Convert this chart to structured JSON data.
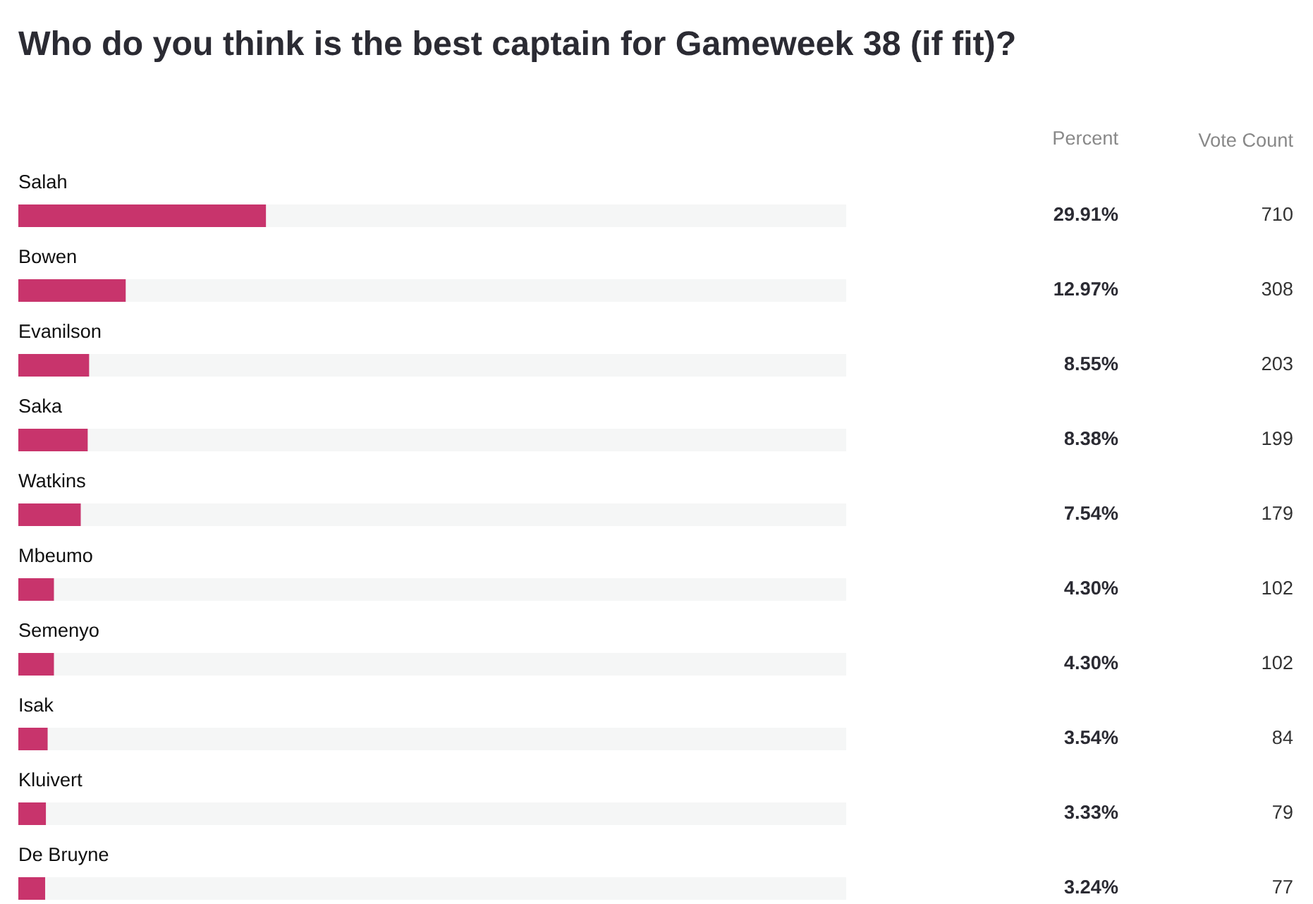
{
  "chart_data": [
    {
      "type": "bar",
      "title": "Who do you think is the best captain for Gameweek 38 (if fit)?",
      "orientation": "horizontal",
      "categories": [
        "Salah",
        "Bowen",
        "Evanilson",
        "Saka",
        "Watkins",
        "Mbeumo",
        "Semenyo",
        "Isak",
        "Kluivert",
        "De Bruyne"
      ],
      "values": [
        29.91,
        12.97,
        8.55,
        8.38,
        7.54,
        4.3,
        4.3,
        3.54,
        3.33,
        3.24
      ],
      "value_labels": [
        "29.91%",
        "12.97%",
        "8.55%",
        "8.38%",
        "7.54%",
        "4.30%",
        "4.30%",
        "3.54%",
        "3.33%",
        "3.24%"
      ],
      "color": "#c8346c",
      "xlim": [
        0,
        100
      ],
      "tick_labels": false,
      "grid": "y"
    },
    {
      "type": "other",
      "title": "Vote Count",
      "annotations": [
        "Percent"
      ],
      "categories": [
        null,
        null,
        null,
        null,
        null,
        null,
        null,
        null,
        null,
        null
      ],
      "values": [
        710,
        308,
        203,
        199,
        179,
        102,
        102,
        84,
        79,
        77
      ],
      "data_labels": true
    }
  ]
}
